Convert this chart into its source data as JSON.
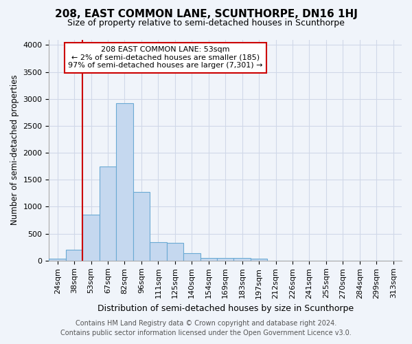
{
  "title": "208, EAST COMMON LANE, SCUNTHORPE, DN16 1HJ",
  "subtitle": "Size of property relative to semi-detached houses in Scunthorpe",
  "xlabel": "Distribution of semi-detached houses by size in Scunthorpe",
  "ylabel": "Number of semi-detached properties",
  "footer_line1": "Contains HM Land Registry data © Crown copyright and database right 2024.",
  "footer_line2": "Contains public sector information licensed under the Open Government Licence v3.0.",
  "annotation_title": "208 EAST COMMON LANE: 53sqm",
  "annotation_line2": "← 2% of semi-detached houses are smaller (185)",
  "annotation_line3": "97% of semi-detached houses are larger (7,301) →",
  "bin_labels": [
    "24sqm",
    "38sqm",
    "53sqm",
    "67sqm",
    "82sqm",
    "96sqm",
    "111sqm",
    "125sqm",
    "140sqm",
    "154sqm",
    "169sqm",
    "183sqm",
    "197sqm",
    "212sqm",
    "226sqm",
    "241sqm",
    "255sqm",
    "270sqm",
    "284sqm",
    "299sqm",
    "313sqm"
  ],
  "bar_values": [
    30,
    200,
    850,
    1750,
    2920,
    1270,
    340,
    330,
    140,
    50,
    50,
    50,
    40,
    0,
    0,
    0,
    0,
    0,
    0,
    0,
    0
  ],
  "bar_color": "#c5d8ef",
  "bar_edge_color": "#6aaad4",
  "highlight_line_color": "#cc0000",
  "highlight_bin_index": 2,
  "annotation_box_edge_color": "#cc0000",
  "annotation_box_face_color": "#ffffff",
  "background_color": "#f0f4fa",
  "grid_color": "#d0d8e8",
  "ylim": [
    0,
    4100
  ],
  "yticks": [
    0,
    500,
    1000,
    1500,
    2000,
    2500,
    3000,
    3500,
    4000
  ],
  "title_fontsize": 11,
  "subtitle_fontsize": 9,
  "ylabel_fontsize": 8.5,
  "xlabel_fontsize": 9,
  "tick_fontsize": 8,
  "annotation_fontsize": 8,
  "footer_fontsize": 7
}
